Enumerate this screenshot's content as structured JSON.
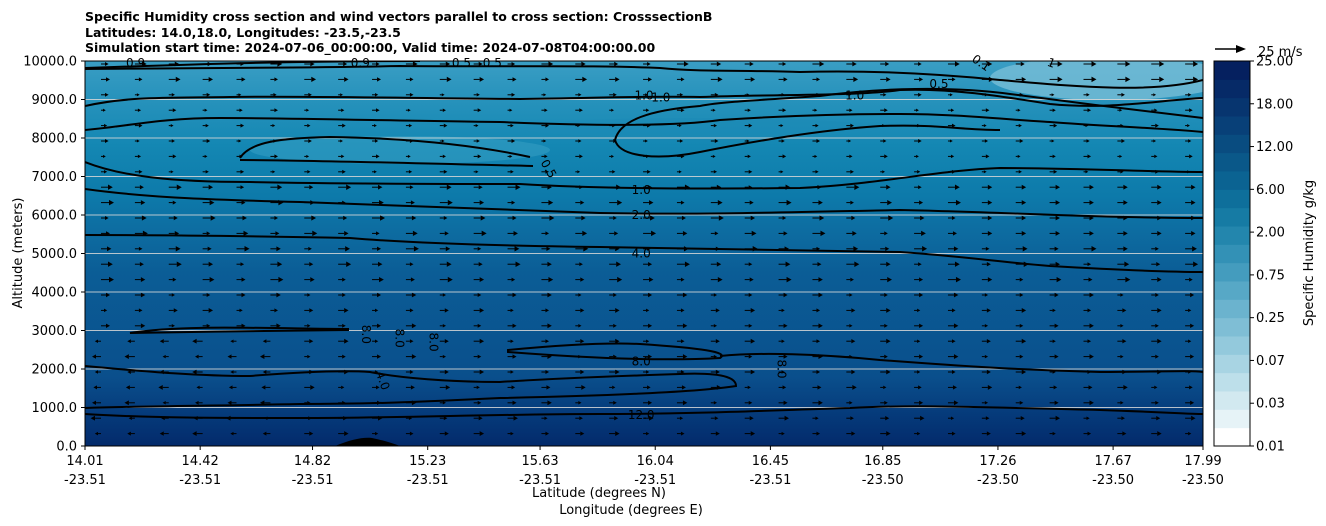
{
  "chart_data": {
    "type": "contour",
    "title_lines": [
      "Specific Humidity cross section and wind vectors parallel to cross section: CrosssectionB",
      "Latitudes: 14.0,18.0, Longitudes: -23.5,-23.5",
      "Simulation start time: 2024-07-06_00:00:00, Valid time: 2024-07-08T04:00:00.00"
    ],
    "xlabel_lat": "Latitude (degrees N)",
    "xlabel_lon": "Longitude (degrees E)",
    "ylabel": "Altitude (meters)",
    "ylim": [
      0,
      10000
    ],
    "yticks": [
      "0.0",
      "1000.0",
      "2000.0",
      "3000.0",
      "4000.0",
      "5000.0",
      "6000.0",
      "7000.0",
      "8000.0",
      "9000.0",
      "10000.0"
    ],
    "xticks": [
      {
        "lat": "14.01",
        "lon": "-23.51"
      },
      {
        "lat": "14.42",
        "lon": "-23.51"
      },
      {
        "lat": "14.82",
        "lon": "-23.51"
      },
      {
        "lat": "15.23",
        "lon": "-23.51"
      },
      {
        "lat": "15.63",
        "lon": "-23.51"
      },
      {
        "lat": "16.04",
        "lon": "-23.51"
      },
      {
        "lat": "16.45",
        "lon": "-23.51"
      },
      {
        "lat": "16.85",
        "lon": "-23.50"
      },
      {
        "lat": "17.26",
        "lon": "-23.50"
      },
      {
        "lat": "17.67",
        "lon": "-23.50"
      },
      {
        "lat": "17.99",
        "lon": "-23.50"
      }
    ],
    "colorbar_label": "Specific Humidity g/kg",
    "colorbar_ticks": [
      "0.01",
      "0.03",
      "0.07",
      "0.25",
      "0.75",
      "2.00",
      "6.00",
      "12.00",
      "18.00",
      "25.00"
    ],
    "quiver_key": "25 m/s",
    "contour_labels": [
      {
        "text": "0.9",
        "lat": 14.19,
        "alt": 9950,
        "rot": 0
      },
      {
        "text": "0.9",
        "lat": 14.99,
        "alt": 9950,
        "rot": 0
      },
      {
        "text": "0.5",
        "lat": 15.35,
        "alt": 9950,
        "rot": 0
      },
      {
        "text": "0.5",
        "lat": 15.46,
        "alt": 9950,
        "rot": 0
      },
      {
        "text": "1.0",
        "lat": 16.0,
        "alt": 9100,
        "rot": 0
      },
      {
        "text": "1.0",
        "lat": 16.06,
        "alt": 9050,
        "rot": 0
      },
      {
        "text": "1.0",
        "lat": 16.75,
        "alt": 9100,
        "rot": 0
      },
      {
        "text": "0.5",
        "lat": 17.05,
        "alt": 9400,
        "rot": 0
      },
      {
        "text": "0.1",
        "lat": 17.2,
        "alt": 9950,
        "rot": 35
      },
      {
        "text": "1",
        "lat": 17.45,
        "alt": 9950,
        "rot": 20
      },
      {
        "text": "0.5",
        "lat": 15.66,
        "alt": 7200,
        "rot": 60
      },
      {
        "text": "1.0",
        "lat": 15.99,
        "alt": 6650,
        "rot": 0
      },
      {
        "text": "2.0",
        "lat": 15.99,
        "alt": 6000,
        "rot": 0
      },
      {
        "text": "4.0",
        "lat": 15.99,
        "alt": 5000,
        "rot": 0
      },
      {
        "text": "8.0",
        "lat": 15.01,
        "alt": 2900,
        "rot": 90
      },
      {
        "text": "8.0",
        "lat": 15.13,
        "alt": 2800,
        "rot": 90
      },
      {
        "text": "8.0",
        "lat": 15.25,
        "alt": 2700,
        "rot": 90
      },
      {
        "text": "4.0",
        "lat": 15.07,
        "alt": 1700,
        "rot": 70
      },
      {
        "text": "8.0",
        "lat": 15.99,
        "alt": 2200,
        "rot": 0
      },
      {
        "text": "8.0",
        "lat": 16.49,
        "alt": 2000,
        "rot": 90
      },
      {
        "text": "12.0",
        "lat": 15.99,
        "alt": 800,
        "rot": 0
      }
    ]
  }
}
